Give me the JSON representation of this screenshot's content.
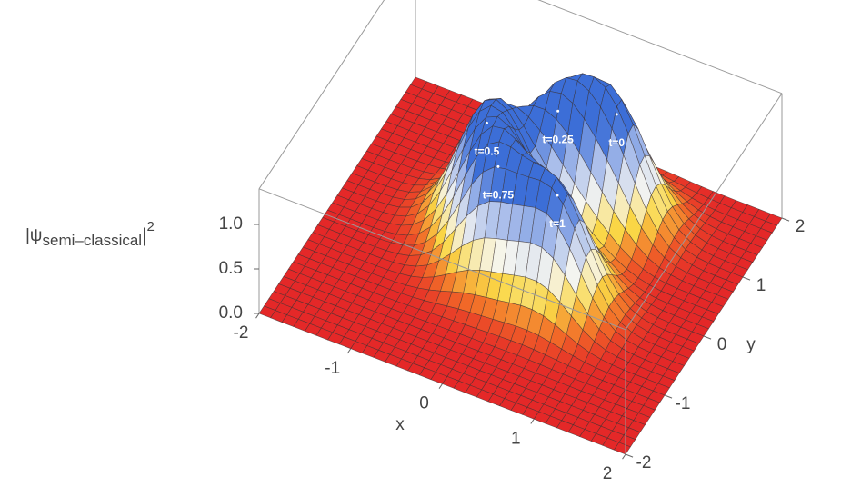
{
  "chart_data": {
    "type": "surface3d",
    "x_label": "x",
    "y_label": "y",
    "z_label": {
      "prefix": "|ψ",
      "sub": "semi–classical",
      "suffix": "|",
      "sup": "2"
    },
    "xlim": [
      -2,
      2
    ],
    "ylim": [
      -2,
      2
    ],
    "zlim": [
      0,
      1.4
    ],
    "xticks": [
      -2,
      -1,
      0,
      1,
      2
    ],
    "yticks": [
      -2,
      -1,
      0,
      1,
      2
    ],
    "zticks": [
      {
        "value": 0,
        "label": "0.0"
      },
      {
        "value": 0.5,
        "label": "0.5"
      },
      {
        "value": 1,
        "label": "1.0"
      }
    ],
    "peaks": [
      {
        "label": "t=0",
        "x": 0.58,
        "y": 1.1,
        "z": 1.2,
        "width": 0.33
      },
      {
        "label": "t=0.25",
        "x": 0.05,
        "y": 0.84,
        "z": 1.2,
        "width": 0.33
      },
      {
        "label": "t=0.5",
        "x": -0.5,
        "y": 0.31,
        "z": 1.2,
        "width": 0.33
      },
      {
        "label": "t=0.75",
        "x": -0.15,
        "y": -0.22,
        "z": 1.2,
        "width": 0.33
      },
      {
        "label": "t=1",
        "x": 0.53,
        "y": -0.3,
        "z": 1.2,
        "width": 0.33
      }
    ]
  }
}
